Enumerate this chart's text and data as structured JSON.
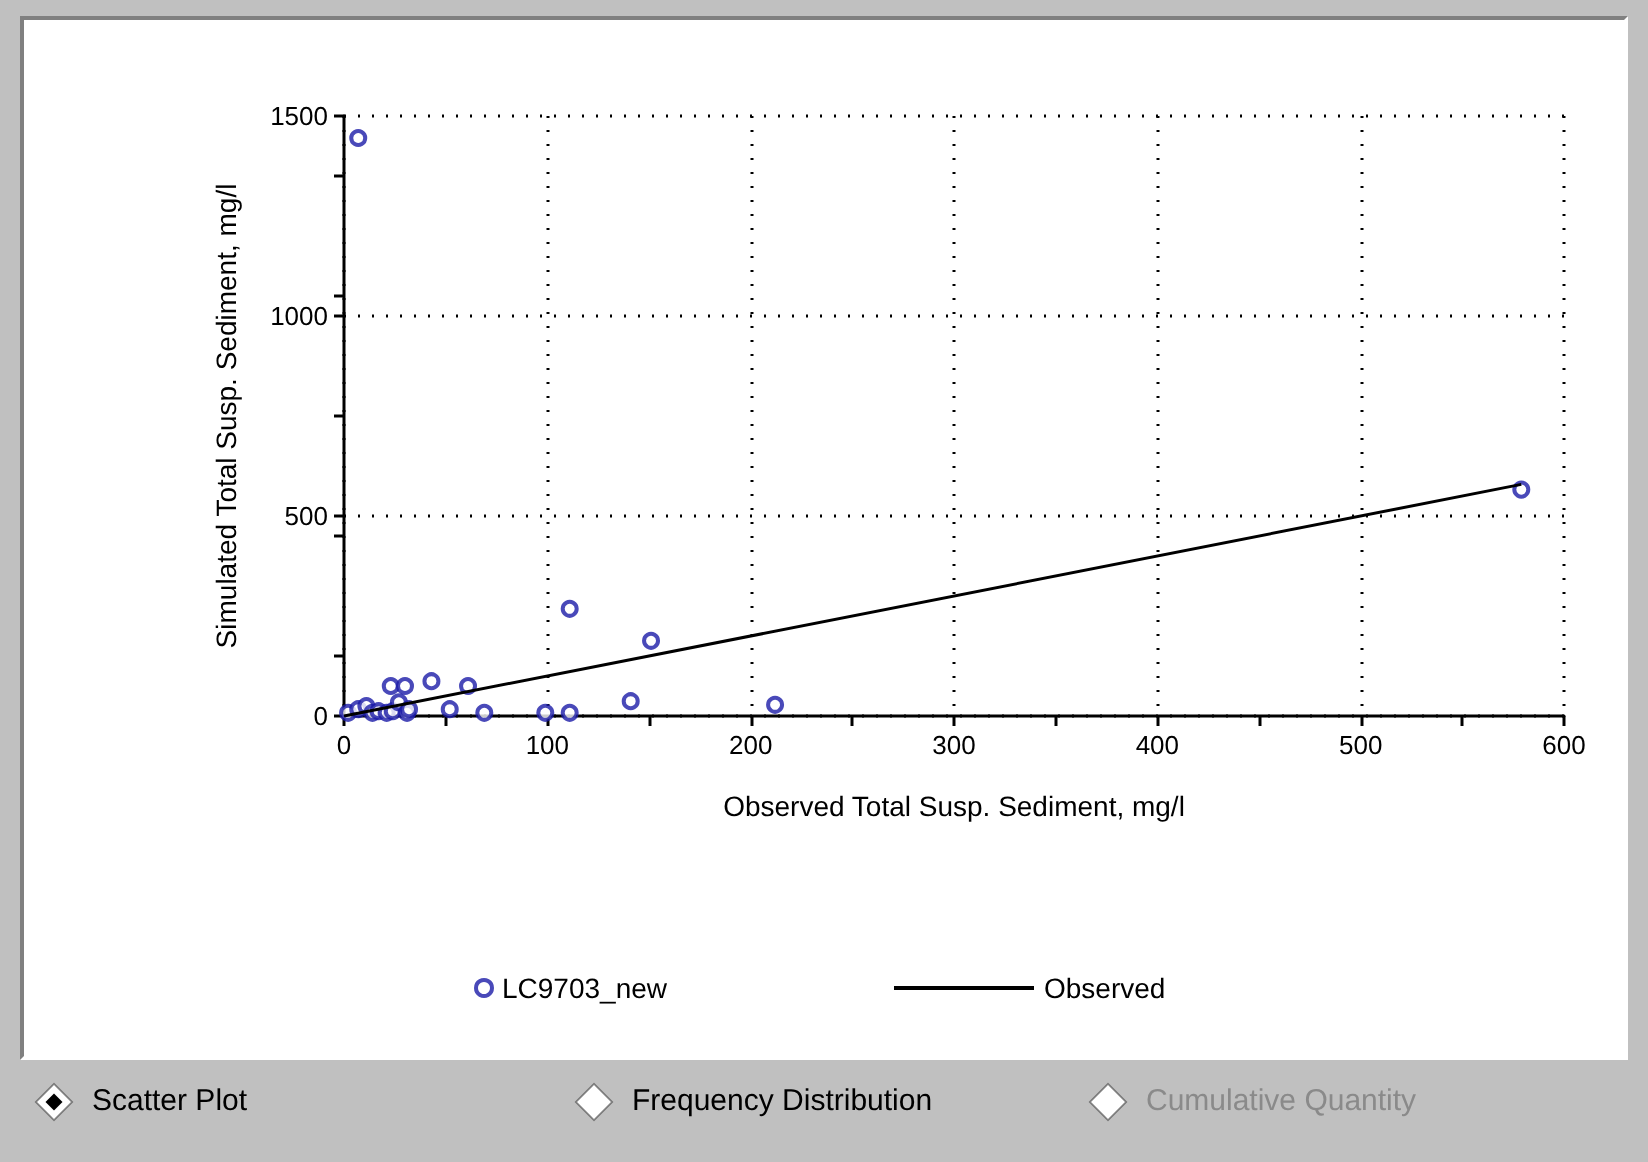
{
  "chart_data": {
    "type": "scatter",
    "xlabel": "Observed Total Susp. Sediment, mg/l",
    "ylabel": "Simulated Total Susp. Sediment, mg/l",
    "xlim": [
      0,
      600
    ],
    "xticks": [
      0,
      100,
      200,
      300,
      400,
      500,
      600
    ],
    "ylim": [
      0,
      1500
    ],
    "yticks": [
      0,
      500,
      1000,
      1500
    ],
    "grid": true,
    "legend": "bottom",
    "series": [
      {
        "name": "LC9703_new",
        "marker": "circle",
        "color": "#1c1ca8",
        "x": [
          7,
          111,
          151,
          141,
          212,
          43,
          61,
          23,
          30,
          52,
          69,
          99,
          111,
          2,
          7,
          11,
          14,
          17,
          21,
          24,
          27,
          31,
          32,
          579
        ],
        "values": [
          1445,
          268,
          188,
          37,
          28,
          87,
          75,
          75,
          75,
          17,
          8,
          8,
          8,
          8,
          17,
          25,
          8,
          12,
          8,
          12,
          34,
          8,
          17,
          566
        ]
      },
      {
        "name": "Observed",
        "type": "line",
        "marker": "none",
        "line_style": "solid",
        "color": "#000000",
        "x": [
          0,
          579
        ],
        "values": [
          0,
          579
        ]
      }
    ],
    "annotations": [
      "Scatter Plot",
      "Frequency Distribution",
      "Cumulative Quantity"
    ]
  }
}
